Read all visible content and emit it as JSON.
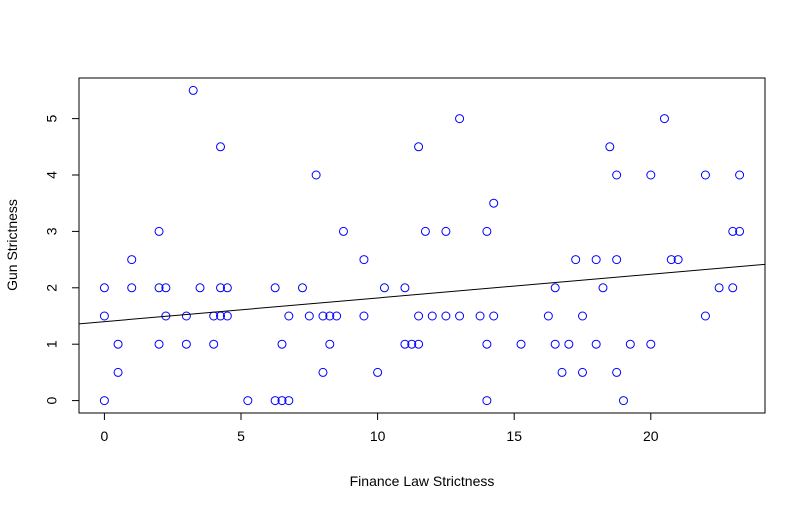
{
  "chart_data": {
    "type": "scatter",
    "xlabel": "Finance Law Strictness",
    "ylabel": "Gun Strictness",
    "color": "#0000ff",
    "x": [
      0,
      0,
      0,
      0.5,
      0.5,
      1,
      1,
      2,
      2,
      2,
      2.25,
      2.25,
      3,
      3,
      3.25,
      3.5,
      4,
      4,
      4.25,
      4.25,
      4.25,
      4.5,
      4.5,
      5.25,
      6.25,
      6.25,
      6.5,
      6.5,
      6.75,
      6.75,
      7.25,
      7.5,
      7.75,
      8,
      8,
      8.25,
      8.25,
      8.5,
      8.75,
      9.5,
      9.5,
      10,
      10.25,
      11,
      11,
      11.25,
      11.5,
      11.5,
      11.5,
      11.75,
      12,
      12.5,
      12.5,
      13,
      13,
      13.75,
      14,
      14,
      14,
      14.25,
      14.25,
      15.25,
      16.25,
      16.5,
      16.5,
      16.75,
      17,
      17.25,
      17.5,
      17.5,
      18,
      18,
      18.25,
      18.5,
      18.75,
      18.75,
      18.75,
      19,
      19.25,
      20,
      20,
      20.5,
      20.75,
      21,
      22,
      22,
      22.5,
      23,
      23,
      23.25,
      23.25
    ],
    "values": [
      2,
      1.5,
      0,
      1,
      0.5,
      2.5,
      2,
      3,
      2,
      1,
      2,
      1.5,
      1.5,
      1,
      5.5,
      2,
      1.5,
      1,
      4.5,
      2,
      1.5,
      2,
      1.5,
      0,
      2,
      0,
      1,
      0,
      1.5,
      0,
      2,
      1.5,
      4,
      1.5,
      0.5,
      1.5,
      1,
      1.5,
      3,
      2.5,
      1.5,
      0.5,
      2,
      2,
      1,
      1,
      4.5,
      1.5,
      1,
      3,
      1.5,
      3,
      1.5,
      5,
      1.5,
      1.5,
      3,
      1,
      0,
      3.5,
      1.5,
      1,
      1.5,
      2,
      1,
      0.5,
      1,
      2.5,
      1.5,
      0.5,
      2.5,
      1,
      2,
      4.5,
      4,
      2.5,
      0.5,
      0,
      1,
      4,
      1,
      5,
      2.5,
      2.5,
      4,
      1.5,
      2,
      3,
      2,
      4,
      3
    ],
    "trend_line": {
      "intercept": 1.4,
      "slope": 0.042,
      "color": "#000000"
    },
    "xlim": [
      -0.93,
      24.18
    ],
    "ylim": [
      -0.22,
      5.72
    ],
    "xticks": [
      0,
      5,
      10,
      15,
      20
    ],
    "yticks": [
      0,
      1,
      2,
      3,
      4,
      5
    ]
  }
}
